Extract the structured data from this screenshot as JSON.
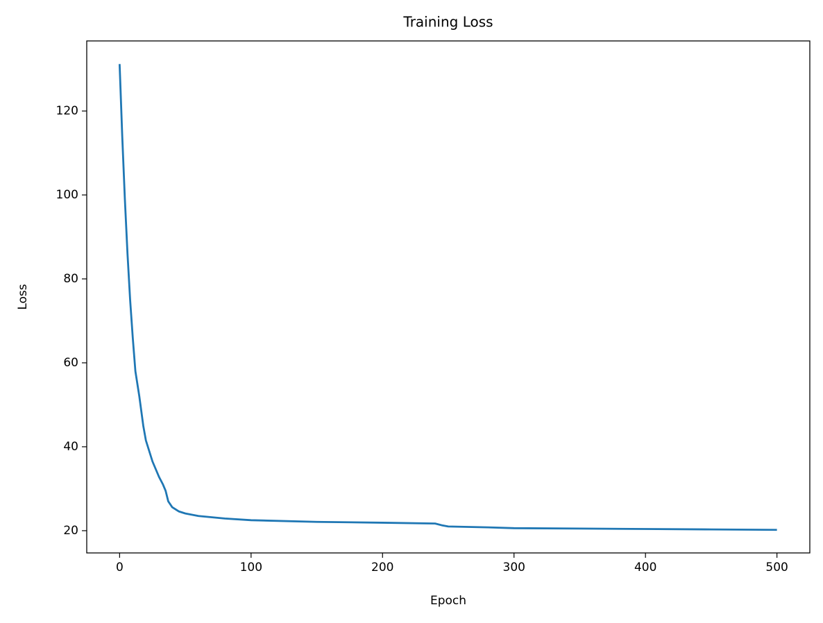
{
  "chart_data": {
    "type": "line",
    "title": "Training Loss",
    "x_label": "Epoch",
    "y_label": "Loss",
    "x": [
      0,
      2,
      4,
      6,
      8,
      10,
      12,
      15,
      18,
      20,
      25,
      30,
      33,
      35,
      37,
      40,
      45,
      50,
      60,
      80,
      100,
      150,
      200,
      240,
      245,
      250,
      280,
      300,
      350,
      400,
      450,
      500
    ],
    "values": [
      131.2,
      114,
      99,
      86,
      75,
      66,
      58,
      52,
      45,
      41.5,
      36.5,
      32.8,
      31,
      29.5,
      27,
      25.6,
      24.6,
      24.1,
      23.5,
      22.9,
      22.5,
      22.1,
      21.9,
      21.7,
      21.3,
      21.0,
      20.8,
      20.6,
      20.5,
      20.4,
      20.3,
      20.2
    ],
    "color": "#1f77b4",
    "xlim": [
      -25,
      525
    ],
    "xticks": [
      0,
      100,
      200,
      300,
      400,
      500
    ],
    "ylim": [
      14.7,
      136.7
    ],
    "yticks": [
      20,
      40,
      60,
      80,
      100,
      120
    ]
  }
}
